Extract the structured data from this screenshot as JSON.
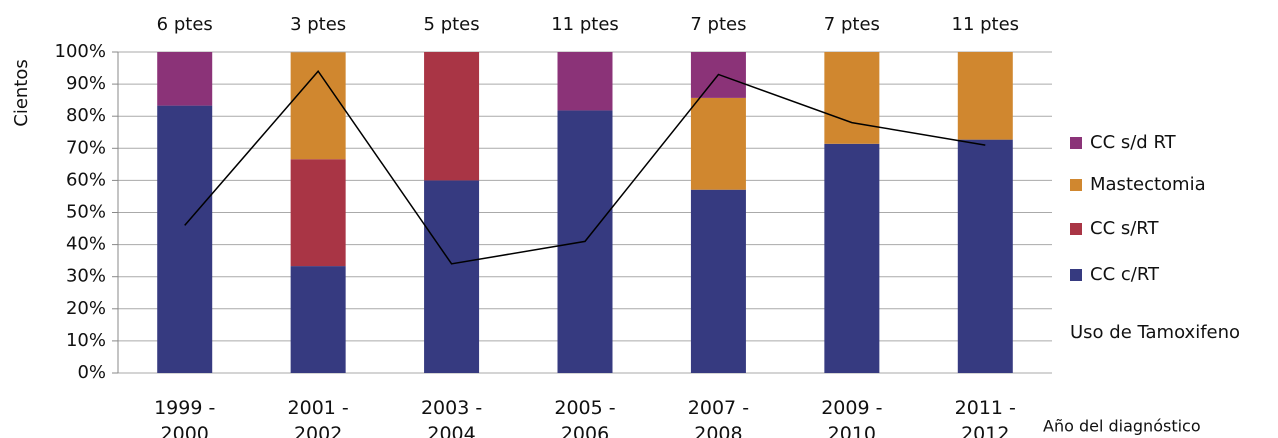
{
  "chart_data": {
    "type": "bar",
    "stacked": true,
    "y_label": "Cientos",
    "x_label": "Año del diagnóstico",
    "categories": [
      "1999 - 2000",
      "2001 - 2002",
      "2003 - 2004",
      "2005 - 2006",
      "2007 - 2008",
      "2009 - 2010",
      "2011 - 2012"
    ],
    "bar_labels": [
      "6 ptes",
      "3 ptes",
      "5 ptes",
      "11 ptes",
      "7 ptes",
      "7 ptes",
      "11 ptes"
    ],
    "series": [
      {
        "name": "CC c/RT",
        "color": "#363a80",
        "values": [
          83.3,
          33.3,
          60,
          81.8,
          57.1,
          71.4,
          72.7
        ]
      },
      {
        "name": "CC s/RT",
        "color": "#a93545",
        "values": [
          0,
          33.3,
          40,
          0,
          0,
          0,
          0
        ]
      },
      {
        "name": "Mastectomia",
        "color": "#d0872f",
        "values": [
          0,
          33.3,
          0,
          0,
          28.6,
          28.6,
          27.3
        ]
      },
      {
        "name": "CC s/d RT",
        "color": "#8b3378",
        "values": [
          16.7,
          0,
          0,
          18.2,
          14.3,
          0,
          0
        ]
      }
    ],
    "line": {
      "name": "Uso de Tamoxifeno",
      "color": "#000000",
      "values": [
        46,
        94,
        34,
        41,
        93,
        78,
        71
      ]
    },
    "ylim": [
      0,
      100
    ],
    "yticks": [
      {
        "value": 0,
        "label": "0%"
      },
      {
        "value": 10,
        "label": "10%"
      },
      {
        "value": 20,
        "label": "20%"
      },
      {
        "value": 30,
        "label": "30%"
      },
      {
        "value": 40,
        "label": "40%"
      },
      {
        "value": 50,
        "label": "50%"
      },
      {
        "value": 60,
        "label": "60%"
      },
      {
        "value": 70,
        "label": "70%"
      },
      {
        "value": 80,
        "label": "80%"
      },
      {
        "value": 90,
        "label": "90%"
      },
      {
        "value": 100,
        "label": "100%"
      }
    ],
    "grid": true,
    "legend": "right"
  }
}
